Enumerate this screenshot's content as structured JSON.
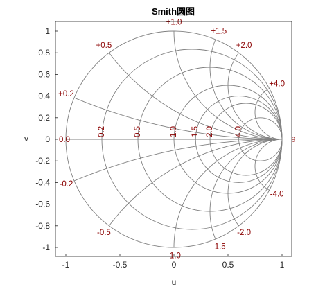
{
  "title": "Smith圆图",
  "xlabel": "u",
  "ylabel": "v",
  "x_ticks": [
    "-1",
    "-0.5",
    "0",
    "0.5",
    "1"
  ],
  "x_tick_values": [
    -1,
    -0.5,
    0,
    0.5,
    1
  ],
  "y_ticks": [
    "1",
    "0.8",
    "0.6",
    "0.4",
    "0.2",
    "0",
    "-0.2",
    "-0.4",
    "-0.6",
    "-0.8",
    "-1"
  ],
  "y_tick_values": [
    1,
    0.8,
    0.6,
    0.4,
    0.2,
    0,
    -0.2,
    -0.4,
    -0.6,
    -0.8,
    -1
  ],
  "colors": {
    "label": "#8b0000",
    "grid": "#808080",
    "axis": "#262626"
  },
  "resistance_values": [
    0,
    0.2,
    0.5,
    1.0,
    1.5,
    2.0,
    4.0
  ],
  "resistance_labels": [
    "0.0",
    "0.2",
    "0.5",
    "1.0",
    "1.5",
    "2.0",
    "4.0"
  ],
  "reactance_values": [
    0.2,
    0.5,
    1.0,
    1.5,
    2.0,
    4.0
  ],
  "reactance_labels_pos": [
    "+0.2",
    "+0.5",
    "+1.0",
    "+1.5",
    "+2.0",
    "+4.0"
  ],
  "reactance_labels_neg": [
    "-0.2",
    "-0.5",
    "-1.0",
    "-1.5",
    "-2.0",
    "-4.0"
  ],
  "infinity_label": "∞"
}
